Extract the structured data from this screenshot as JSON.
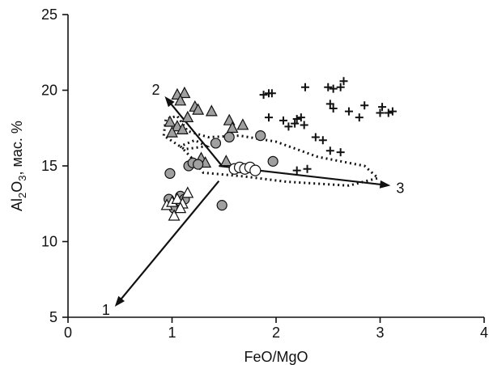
{
  "chart_data": {
    "type": "scatter",
    "title": "",
    "xlabel": "FeO/MgO",
    "ylabel": {
      "prefix": "Al",
      "subscript_1": "2",
      "middle": "O",
      "subscript_2": "3",
      "suffix": ", мас. %"
    },
    "xlim": [
      0,
      4
    ],
    "ylim": [
      5,
      25
    ],
    "xticks": [
      "0",
      "1",
      "2",
      "3",
      "4"
    ],
    "yticks": [
      "5",
      "10",
      "15",
      "20",
      "25"
    ],
    "grid": false,
    "legend": "none",
    "colors": {
      "marker_fill": "#a0a0a0",
      "marker_edge": "#111111",
      "open_fill": "#ffffff",
      "ink": "#111111"
    },
    "series": [
      {
        "marker": "gray-triangle",
        "points": [
          [
            1.05,
            19.7
          ],
          [
            1.12,
            19.8
          ],
          [
            1.08,
            19.3
          ],
          [
            1.15,
            18.2
          ],
          [
            1.22,
            18.9
          ],
          [
            1.25,
            18.7
          ],
          [
            0.98,
            17.9
          ],
          [
            1.05,
            17.6
          ],
          [
            1.1,
            17.4
          ],
          [
            1.0,
            17.2
          ],
          [
            1.38,
            18.6
          ],
          [
            1.55,
            18.0
          ],
          [
            1.68,
            17.7
          ],
          [
            1.28,
            15.5
          ],
          [
            1.32,
            15.2
          ],
          [
            1.58,
            17.5
          ],
          [
            1.52,
            15.3
          ]
        ]
      },
      {
        "marker": "gray-circle",
        "points": [
          [
            0.98,
            14.5
          ],
          [
            0.97,
            12.8
          ],
          [
            1.02,
            12.2
          ],
          [
            1.08,
            13.0
          ],
          [
            1.12,
            12.8
          ],
          [
            1.16,
            15.0
          ],
          [
            1.2,
            15.2
          ],
          [
            1.25,
            15.1
          ],
          [
            1.42,
            16.5
          ],
          [
            1.48,
            12.4
          ],
          [
            1.55,
            16.9
          ],
          [
            1.85,
            17.0
          ],
          [
            1.97,
            15.3
          ]
        ]
      },
      {
        "marker": "open-triangle",
        "points": [
          [
            0.95,
            12.4
          ],
          [
            1.0,
            12.6
          ],
          [
            1.05,
            12.8
          ],
          [
            1.1,
            12.5
          ],
          [
            1.15,
            13.2
          ],
          [
            1.02,
            11.7
          ],
          [
            1.08,
            12.2
          ]
        ]
      },
      {
        "marker": "open-circle",
        "points": [
          [
            1.6,
            14.8
          ],
          [
            1.65,
            14.9
          ],
          [
            1.7,
            14.8
          ],
          [
            1.75,
            14.9
          ],
          [
            1.8,
            14.7
          ]
        ]
      },
      {
        "marker": "plus",
        "points": [
          [
            1.88,
            19.7
          ],
          [
            1.93,
            19.8
          ],
          [
            1.96,
            19.8
          ],
          [
            2.28,
            20.2
          ],
          [
            2.5,
            20.2
          ],
          [
            2.55,
            20.1
          ],
          [
            2.62,
            20.2
          ],
          [
            2.65,
            20.6
          ],
          [
            2.7,
            18.6
          ],
          [
            2.85,
            19.0
          ],
          [
            3.02,
            18.9
          ],
          [
            3.08,
            18.5
          ],
          [
            3.12,
            18.6
          ],
          [
            3.0,
            18.5
          ],
          [
            2.52,
            19.1
          ],
          [
            2.55,
            18.8
          ],
          [
            2.07,
            18.0
          ],
          [
            2.12,
            17.6
          ],
          [
            2.18,
            17.8
          ],
          [
            2.2,
            18.1
          ],
          [
            2.24,
            18.2
          ],
          [
            2.27,
            17.7
          ],
          [
            1.93,
            18.2
          ],
          [
            2.38,
            16.9
          ],
          [
            2.45,
            16.7
          ],
          [
            2.52,
            16.0
          ],
          [
            2.62,
            15.9
          ],
          [
            2.8,
            18.2
          ],
          [
            2.2,
            14.7
          ],
          [
            2.3,
            14.8
          ]
        ]
      }
    ],
    "trends": [
      {
        "label": "1",
        "from": [
          1.45,
          14.0
        ],
        "to": [
          0.45,
          5.7
        ]
      },
      {
        "label": "2",
        "from": [
          1.48,
          15.0
        ],
        "to": [
          0.93,
          19.6
        ]
      },
      {
        "label": "3",
        "from": [
          1.45,
          15.0
        ],
        "to": [
          3.1,
          13.7
        ]
      }
    ],
    "field_outline": [
      [
        0.92,
        17.0
      ],
      [
        0.94,
        18.1
      ],
      [
        1.05,
        18.3
      ],
      [
        1.15,
        17.3
      ],
      [
        1.35,
        16.9
      ],
      [
        1.65,
        17.0
      ],
      [
        2.0,
        16.6
      ],
      [
        2.4,
        15.6
      ],
      [
        2.85,
        15.0
      ],
      [
        2.98,
        14.2
      ],
      [
        2.7,
        13.7
      ],
      [
        2.1,
        13.95
      ],
      [
        1.7,
        14.3
      ],
      [
        1.3,
        14.55
      ],
      [
        1.18,
        15.6
      ],
      [
        1.08,
        16.3
      ],
      [
        1.22,
        16.7
      ],
      [
        1.33,
        16.3
      ],
      [
        1.12,
        16.1
      ],
      [
        0.92,
        17.0
      ]
    ]
  }
}
